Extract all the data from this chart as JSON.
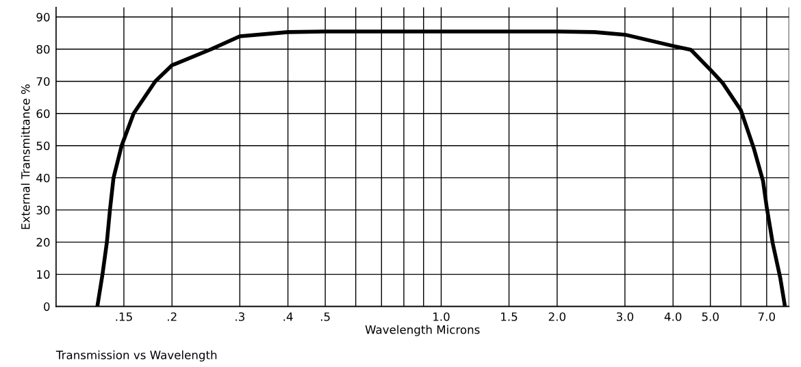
{
  "chart_data": {
    "type": "line",
    "xlabel": "Wavelength Microns",
    "ylabel": "External Transmittance %",
    "annotations": [
      "Transmission vs Wavelength"
    ],
    "log": "x",
    "grid": true,
    "marker": "none",
    "line_style": "solid",
    "xlim": [
      0.1,
      8
    ],
    "ylim": [
      0,
      93
    ],
    "xticks": [
      {
        "value": 0.15,
        "label": ".15"
      },
      {
        "value": 0.2,
        "label": ".2"
      },
      {
        "value": 0.3,
        "label": ".3"
      },
      {
        "value": 0.4,
        "label": ".4"
      },
      {
        "value": 0.5,
        "label": ".5"
      },
      {
        "value": 0.6,
        "label": null
      },
      {
        "value": 0.7,
        "label": null
      },
      {
        "value": 0.8,
        "label": null
      },
      {
        "value": 0.9,
        "label": null
      },
      {
        "value": 1,
        "label": "1.0"
      },
      {
        "value": 1.5,
        "label": "1.5"
      },
      {
        "value": 2,
        "label": "2.0"
      },
      {
        "value": 3,
        "label": "3.0"
      },
      {
        "value": 4,
        "label": "4.0"
      },
      {
        "value": 5,
        "label": "5.0"
      },
      {
        "value": 6,
        "label": null
      },
      {
        "value": 7,
        "label": "7.0"
      },
      {
        "value": 8,
        "label": null
      }
    ],
    "yticks": [
      0,
      10,
      20,
      30,
      40,
      50,
      60,
      70,
      80,
      90
    ],
    "series": [
      {
        "color": "#000000",
        "x": [
          0.128,
          0.132,
          0.1355,
          0.138,
          0.141,
          0.148,
          0.159,
          0.181,
          0.2,
          0.253,
          0.3,
          0.4,
          0.5,
          0.6,
          1.0,
          1.5,
          2.0,
          2.5,
          3.0,
          4.0,
          4.45,
          5.0,
          5.38,
          6.0,
          6.49,
          6.85,
          7.0,
          7.26,
          7.59,
          7.81
        ],
        "values": [
          0,
          10,
          20,
          30,
          40,
          50,
          60,
          70,
          75,
          80,
          84,
          85.3,
          85.5,
          85.5,
          85.5,
          85.5,
          85.5,
          85.3,
          84.5,
          81,
          79.8,
          73.6,
          69.5,
          61,
          49,
          39,
          31,
          19.6,
          9,
          0
        ]
      }
    ]
  }
}
